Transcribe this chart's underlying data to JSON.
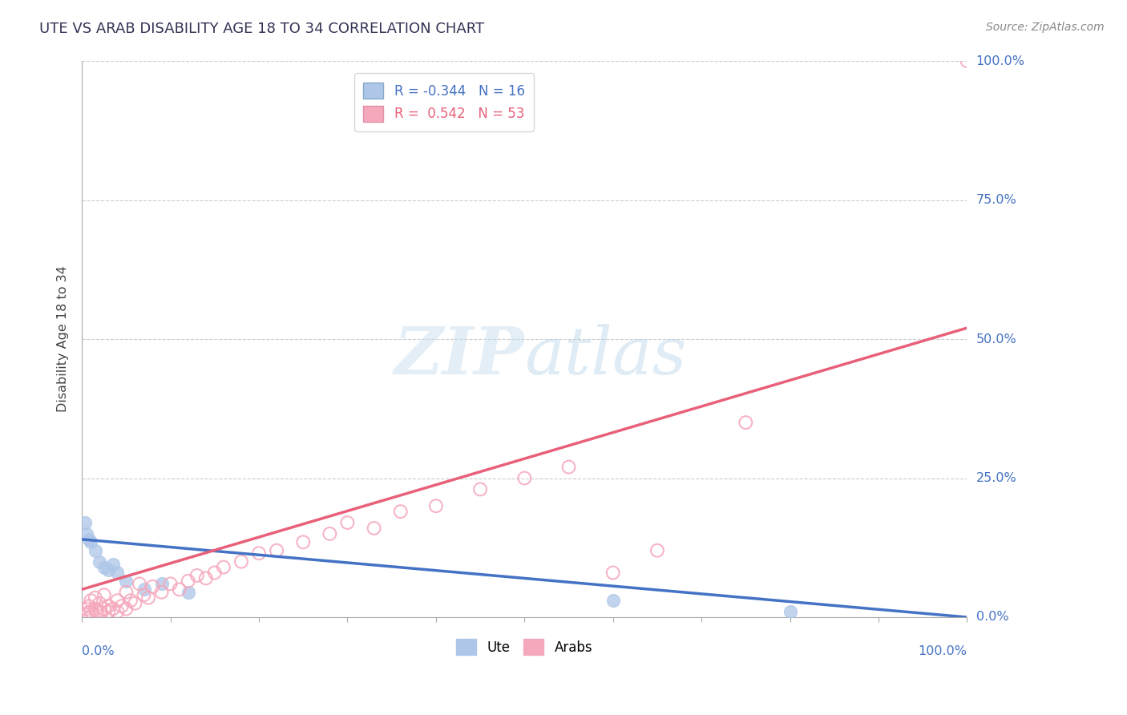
{
  "title": "UTE VS ARAB DISABILITY AGE 18 TO 34 CORRELATION CHART",
  "source": "Source: ZipAtlas.com",
  "ylabel": "Disability Age 18 to 34",
  "ytick_labels": [
    "0.0%",
    "25.0%",
    "50.0%",
    "75.0%",
    "100.0%"
  ],
  "ytick_positions": [
    0.0,
    25.0,
    50.0,
    75.0,
    100.0
  ],
  "xlim": [
    0.0,
    100.0
  ],
  "ylim": [
    0.0,
    100.0
  ],
  "ute_R": -0.344,
  "ute_N": 16,
  "arab_R": 0.542,
  "arab_N": 53,
  "ute_color": "#aec6e8",
  "arab_color": "#f5a8bc",
  "ute_line_color": "#4472c4",
  "arab_line_color": "#e8607a",
  "ute_line": [
    0.0,
    14.0,
    100.0,
    0.0
  ],
  "arab_line": [
    0.0,
    5.0,
    100.0,
    52.0
  ],
  "ute_points": [
    [
      0.3,
      17.0
    ],
    [
      0.5,
      15.0
    ],
    [
      0.8,
      14.0
    ],
    [
      1.0,
      13.5
    ],
    [
      1.5,
      12.0
    ],
    [
      2.0,
      10.0
    ],
    [
      2.5,
      9.0
    ],
    [
      3.0,
      8.5
    ],
    [
      3.5,
      9.5
    ],
    [
      4.0,
      8.0
    ],
    [
      5.0,
      6.5
    ],
    [
      7.0,
      5.0
    ],
    [
      9.0,
      6.0
    ],
    [
      12.0,
      4.5
    ],
    [
      60.0,
      3.0
    ],
    [
      80.0,
      1.0
    ]
  ],
  "arab_points": [
    [
      0.3,
      0.5
    ],
    [
      0.5,
      1.5
    ],
    [
      0.7,
      0.8
    ],
    [
      0.8,
      2.0
    ],
    [
      1.0,
      1.0
    ],
    [
      1.0,
      3.0
    ],
    [
      1.2,
      0.5
    ],
    [
      1.5,
      1.5
    ],
    [
      1.5,
      3.5
    ],
    [
      1.7,
      1.0
    ],
    [
      2.0,
      1.0
    ],
    [
      2.0,
      2.5
    ],
    [
      2.2,
      0.8
    ],
    [
      2.5,
      1.5
    ],
    [
      2.5,
      4.0
    ],
    [
      3.0,
      1.0
    ],
    [
      3.0,
      2.0
    ],
    [
      3.5,
      1.5
    ],
    [
      4.0,
      1.0
    ],
    [
      4.0,
      3.0
    ],
    [
      4.5,
      2.0
    ],
    [
      5.0,
      1.5
    ],
    [
      5.0,
      4.5
    ],
    [
      5.5,
      3.0
    ],
    [
      6.0,
      2.5
    ],
    [
      6.5,
      6.0
    ],
    [
      7.0,
      4.0
    ],
    [
      7.5,
      3.5
    ],
    [
      8.0,
      5.5
    ],
    [
      9.0,
      4.5
    ],
    [
      10.0,
      6.0
    ],
    [
      11.0,
      5.0
    ],
    [
      12.0,
      6.5
    ],
    [
      13.0,
      7.5
    ],
    [
      14.0,
      7.0
    ],
    [
      15.0,
      8.0
    ],
    [
      16.0,
      9.0
    ],
    [
      18.0,
      10.0
    ],
    [
      20.0,
      11.5
    ],
    [
      22.0,
      12.0
    ],
    [
      25.0,
      13.5
    ],
    [
      28.0,
      15.0
    ],
    [
      30.0,
      17.0
    ],
    [
      33.0,
      16.0
    ],
    [
      36.0,
      19.0
    ],
    [
      40.0,
      20.0
    ],
    [
      45.0,
      23.0
    ],
    [
      50.0,
      25.0
    ],
    [
      55.0,
      27.0
    ],
    [
      60.0,
      8.0
    ],
    [
      65.0,
      12.0
    ],
    [
      75.0,
      35.0
    ],
    [
      100.0,
      100.0
    ]
  ],
  "background_color": "#ffffff",
  "grid_color": "#cccccc",
  "right_label_color": "#4472c4",
  "title_color": "#333355",
  "source_color": "#888888"
}
